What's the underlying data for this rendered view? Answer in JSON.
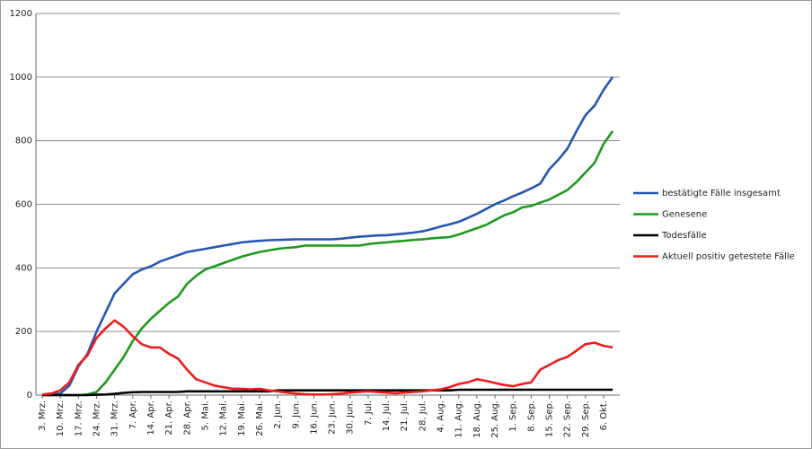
{
  "chart_data": {
    "type": "line",
    "categories": [
      "3. Mrz.",
      null,
      "10. Mrz.",
      null,
      "17. Mrz.",
      null,
      "24. Mrz.",
      null,
      "31. Mrz.",
      null,
      "7. Apr.",
      null,
      "14. Apr.",
      null,
      "21. Apr.",
      null,
      "28. Apr.",
      null,
      "5. Mai.",
      null,
      "12. Mai.",
      null,
      "19. Mai.",
      null,
      "26. Mai.",
      null,
      "2. Jun.",
      null,
      "9. Jun.",
      null,
      "16. Jun.",
      null,
      "23. Jun.",
      null,
      "30. Jun.",
      null,
      "7. Jul.",
      null,
      "14. Jul.",
      null,
      "21. Jul.",
      null,
      "28. Jul.",
      null,
      "4. Aug.",
      null,
      "11. Aug.",
      null,
      "18. Aug.",
      null,
      "25. Aug.",
      null,
      "1. Sep.",
      null,
      "8. Sep.",
      null,
      "15. Sep.",
      null,
      "22. Sep.",
      null,
      "29. Sep.",
      null,
      "6. Okt.",
      null
    ],
    "series": [
      {
        "name": "bestätigte Fälle insgesamt",
        "color": "#2556b4",
        "values": [
          0,
          2,
          5,
          30,
          90,
          130,
          200,
          260,
          320,
          350,
          380,
          395,
          405,
          420,
          430,
          440,
          450,
          455,
          460,
          465,
          470,
          475,
          480,
          483,
          485,
          487,
          488,
          489,
          490,
          490,
          490,
          490,
          490,
          492,
          495,
          498,
          500,
          502,
          503,
          505,
          508,
          511,
          515,
          522,
          530,
          537,
          545,
          557,
          570,
          585,
          600,
          612,
          625,
          637,
          650,
          665,
          710,
          740,
          775,
          830,
          880,
          910,
          960,
          1000
        ]
      },
      {
        "name": "Genesene",
        "color": "#1e9a1e",
        "values": [
          0,
          0,
          0,
          0,
          0,
          2,
          10,
          40,
          80,
          120,
          170,
          210,
          240,
          265,
          290,
          310,
          350,
          375,
          395,
          405,
          415,
          425,
          435,
          443,
          450,
          455,
          460,
          463,
          465,
          470,
          470,
          470,
          470,
          470,
          470,
          470,
          475,
          478,
          480,
          483,
          485,
          488,
          490,
          493,
          495,
          497,
          505,
          515,
          525,
          535,
          550,
          565,
          575,
          590,
          595,
          605,
          615,
          630,
          645,
          670,
          700,
          730,
          790,
          830
        ]
      },
      {
        "name": "Todesfälle",
        "color": "#000000",
        "values": [
          0,
          0,
          0,
          0,
          0,
          0,
          1,
          2,
          4,
          7,
          9,
          10,
          10,
          10,
          10,
          10,
          12,
          12,
          12,
          12,
          12,
          12,
          12,
          12,
          12,
          12,
          15,
          15,
          15,
          15,
          15,
          15,
          15,
          15,
          15,
          15,
          15,
          15,
          15,
          15,
          15,
          15,
          15,
          15,
          15,
          15,
          17,
          17,
          17,
          17,
          17,
          17,
          17,
          17,
          17,
          17,
          17,
          17,
          17,
          17,
          17,
          17,
          17,
          17
        ]
      },
      {
        "name": "Aktuell positiv getestete Fälle",
        "color": "#ee1c1c",
        "values": [
          2,
          5,
          15,
          40,
          95,
          125,
          180,
          210,
          235,
          215,
          185,
          160,
          150,
          150,
          130,
          115,
          80,
          50,
          40,
          30,
          25,
          20,
          20,
          18,
          20,
          15,
          12,
          8,
          5,
          3,
          2,
          2,
          3,
          5,
          8,
          10,
          12,
          10,
          8,
          6,
          8,
          10,
          12,
          15,
          18,
          25,
          35,
          40,
          50,
          45,
          38,
          32,
          28,
          35,
          40,
          80,
          95,
          110,
          120,
          140,
          160,
          165,
          155,
          150
        ]
      }
    ],
    "ylim": [
      0,
      1200
    ],
    "yticks": [
      0,
      200,
      400,
      600,
      800,
      1000,
      1200
    ],
    "grid": true,
    "legend": "right"
  }
}
